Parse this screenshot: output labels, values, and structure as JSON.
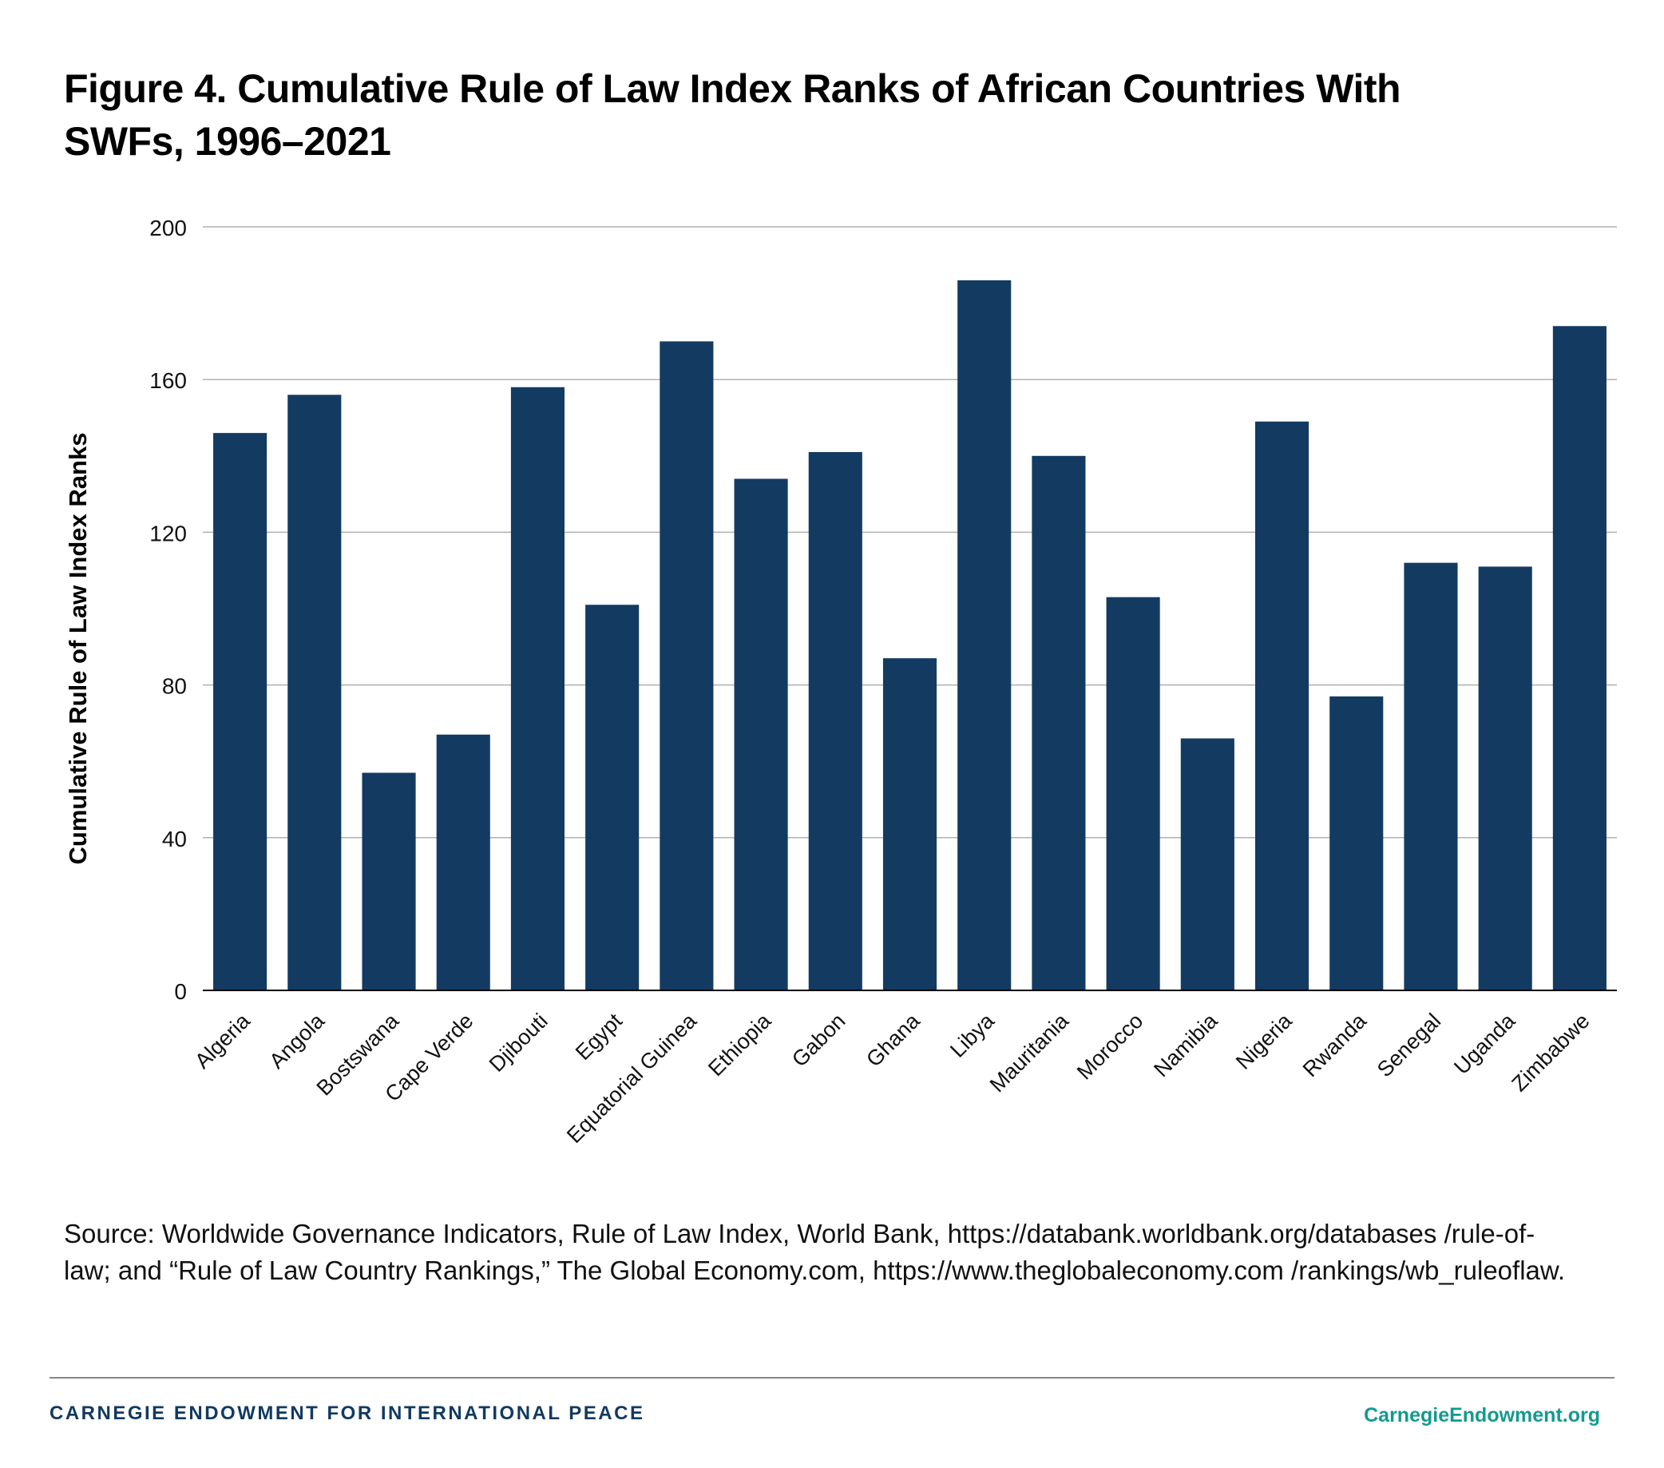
{
  "title": "Figure 4. Cumulative Rule of Law Index Ranks of African Countries With SWFs, 1996–2021",
  "source": "Source: Worldwide Governance Indicators, Rule of Law Index, World Bank, https://databank.worldbank.org/databases /rule-of-law; and “Rule of Law Country Rankings,” The Global Economy.com, https://www.theglobaleconomy.com /rankings/wb_ruleoflaw.",
  "footer": {
    "org": "CARNEGIE ENDOWMENT FOR INTERNATIONAL PEACE",
    "site": "CarnegieEndowment.org"
  },
  "colors": {
    "bar": "#133b62",
    "grid": "#b0b0b0",
    "footer_org": "#123a60",
    "footer_site": "#139a8e"
  },
  "chart_data": {
    "type": "bar",
    "title": "Figure 4. Cumulative Rule of Law Index Ranks of African Countries With SWFs, 1996–2021",
    "xlabel": "",
    "ylabel": "Cumulative Rule of Law Index Ranks",
    "ylim": [
      0,
      200
    ],
    "yticks": [
      0,
      40,
      80,
      120,
      160,
      200
    ],
    "grid": true,
    "categories": [
      "Algeria",
      "Angola",
      "Bostswana",
      "Cape Verde",
      "Djibouti",
      "Egypt",
      "Equatorial Guinea",
      "Ethiopia",
      "Gabon",
      "Ghana",
      "Libya",
      "Mauritania",
      "Morocco",
      "Namibia",
      "Nigeria",
      "Rwanda",
      "Senegal",
      "Uganda",
      "Zimbabwe"
    ],
    "values": [
      146,
      156,
      57,
      67,
      158,
      101,
      170,
      134,
      141,
      87,
      186,
      140,
      103,
      66,
      149,
      77,
      112,
      111,
      174
    ]
  }
}
